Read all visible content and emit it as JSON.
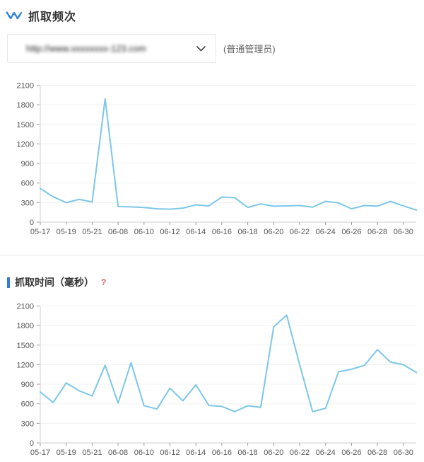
{
  "header": {
    "title": "抓取频次",
    "icon": "trend-zigzag-icon"
  },
  "site_selector": {
    "url_display": "http://www.xxxxxxxx-123.com",
    "masked": true,
    "chevron_icon": "chevron-down-icon"
  },
  "role_label": "(普通管理员)",
  "section2": {
    "title": "抓取时间（毫秒）",
    "help_glyph": "?",
    "help_icon": "question-mark-icon"
  },
  "colors": {
    "line": "#7cc7e9",
    "accent_blue": "#2d7dd2",
    "help_red": "#e05c5c",
    "axis_text": "#555",
    "grid": "#f0f0f0"
  },
  "chart_data": [
    {
      "type": "line",
      "title": "抓取频次",
      "xlabel": "",
      "ylabel": "",
      "ylim": [
        0,
        2100
      ],
      "y_ticks": [
        0,
        300,
        600,
        900,
        1200,
        1500,
        1800,
        2100
      ],
      "grid": true,
      "legend": "none",
      "line_color": "#7cc7e9",
      "x_tick_labels": [
        "05-17",
        "05-19",
        "05-21",
        "06-08",
        "06-10",
        "06-12",
        "06-14",
        "06-16",
        "06-18",
        "06-20",
        "06-22",
        "06-24",
        "06-26",
        "06-28",
        "06-30"
      ],
      "points_per_tick": 2,
      "values": [
        515,
        390,
        300,
        350,
        310,
        1890,
        240,
        235,
        225,
        205,
        200,
        215,
        265,
        250,
        385,
        375,
        225,
        280,
        245,
        250,
        255,
        230,
        320,
        295,
        205,
        255,
        245,
        320,
        250,
        185
      ]
    },
    {
      "type": "line",
      "title": "抓取时间（毫秒）",
      "xlabel": "",
      "ylabel": "毫秒",
      "ylim": [
        0,
        2100
      ],
      "y_ticks": [
        0,
        300,
        600,
        900,
        1200,
        1500,
        1800,
        2100
      ],
      "grid": true,
      "legend": "none",
      "line_color": "#7cc7e9",
      "x_tick_labels": [
        "05-17",
        "05-19",
        "05-21",
        "06-08",
        "06-10",
        "06-12",
        "06-14",
        "06-16",
        "06-18",
        "06-20",
        "06-22",
        "06-24",
        "06-26",
        "06-28",
        "06-30"
      ],
      "points_per_tick": 2,
      "values": [
        780,
        620,
        920,
        800,
        720,
        1190,
        610,
        1230,
        570,
        520,
        840,
        645,
        890,
        575,
        560,
        480,
        570,
        545,
        1780,
        1960,
        1200,
        480,
        530,
        1090,
        1130,
        1190,
        1430,
        1240,
        1200,
        1080
      ]
    }
  ]
}
